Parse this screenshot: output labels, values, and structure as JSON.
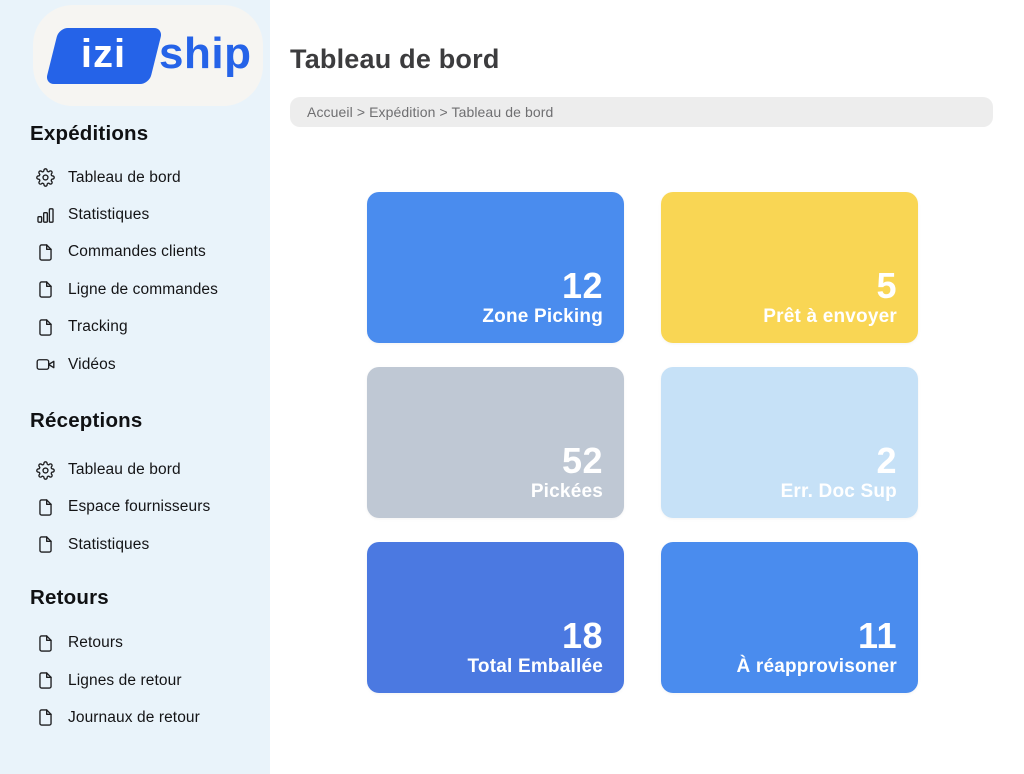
{
  "app": {
    "logo": {
      "part1": "izi",
      "part2": "ship"
    }
  },
  "sidebar": {
    "sections": [
      {
        "title": "Expéditions",
        "items": [
          {
            "icon": "gear-icon",
            "label": "Tableau de bord"
          },
          {
            "icon": "bar-chart-icon",
            "label": "Statistiques"
          },
          {
            "icon": "file-icon",
            "label": "Commandes clients"
          },
          {
            "icon": "file-icon",
            "label": "Ligne de commandes"
          },
          {
            "icon": "file-icon",
            "label": "Tracking"
          },
          {
            "icon": "video-icon",
            "label": "Vidéos"
          }
        ]
      },
      {
        "title": "Réceptions",
        "items": [
          {
            "icon": "gear-icon",
            "label": "Tableau de bord"
          },
          {
            "icon": "file-icon",
            "label": "Espace fournisseurs"
          },
          {
            "icon": "file-icon",
            "label": "Statistiques"
          }
        ]
      },
      {
        "title": "Retours",
        "items": [
          {
            "icon": "file-icon",
            "label": "Retours"
          },
          {
            "icon": "file-icon",
            "label": "Lignes de retour"
          },
          {
            "icon": "file-icon",
            "label": "Journaux de retour"
          }
        ]
      }
    ]
  },
  "header": {
    "title": "Tableau de bord",
    "breadcrumb": "Accueil > Expédition > Tableau de bord"
  },
  "cards": [
    {
      "value": "12",
      "label": "Zone Picking",
      "color": "#4a8cee"
    },
    {
      "value": "5",
      "label": "Prêt à envoyer",
      "color": "#f9d654"
    },
    {
      "value": "52",
      "label": "Pickées",
      "color": "#bfc8d4"
    },
    {
      "value": "2",
      "label": "Err. Doc Sup",
      "color": "#c6e1f7"
    },
    {
      "value": "18",
      "label": "Total Emballée",
      "color": "#4b79e1"
    },
    {
      "value": "11",
      "label": "À réapprovisoner",
      "color": "#4a8cee"
    }
  ],
  "colors": {
    "brand_blue": "#2563e8",
    "sidebar_bg": "#e9f3fa",
    "breadcrumb_bg": "#ededed",
    "card_text": "#ffffff"
  }
}
